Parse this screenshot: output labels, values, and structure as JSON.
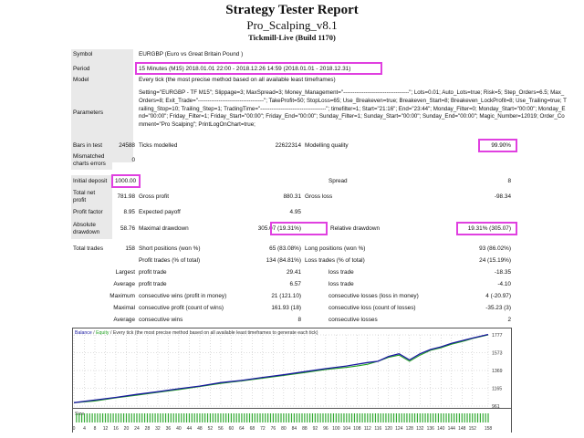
{
  "header": {
    "title": "Strategy Tester Report",
    "subtitle": "Pro_Scalping_v8.1",
    "server": "Tickmill-Live (Build 1170)"
  },
  "info": {
    "symbol_label": "Symbol",
    "symbol_value": "EURGBP (Euro vs Great Britain Pound )",
    "period_label": "Period",
    "period_value": "15 Minutes (M15) 2018.01.01 22:00 - 2018.12.26 14:59 (2018.01.01 - 2018.12.31)",
    "model_label": "Model",
    "model_value": "Every tick (the most precise method based on all available least timeframes)",
    "parameters_label": "Parameters",
    "parameters_value": "Setting=\"EURGBP - TF M15\"; Slippage=3; MaxSpread=3; Money_Management=\"-----------------------------------\"; Lots=0.01; Auto_Lots=true; Risk=5; Step_Orders=6.5; Max_Orders=8; Exit_Trade=\"-----------------------------------\"; TakeProfit=50; StopLoss=65; Use_Breakeven=true; Breakeven_Start=8; Breakeven_LockProfit=8; Use_Trailing=true; Trailing_Stop=10; Trailing_Step=1; TradingTime=\"-----------------------------------\"; timefilter=1; Start=\"21:16\"; End=\"23:44\"; Monday_Filter=0; Monday_Start=\"00:00\"; Monday_End=\"00:00\"; Friday_Filter=1; Friday_Start=\"00:00\"; Friday_End=\"00:00\"; Sunday_Filter=1; Sunday_Start=\"00:00\"; Sunday_End=\"00:00\"; Magic_Number=12019; Order_Comment=\"Pro Scalping\"; PrintLogOnChart=true;"
  },
  "bars": {
    "bars_label": "Bars in test",
    "bars_value": "24588",
    "ticks_label": "Ticks modelled",
    "ticks_value": "22622314",
    "quality_label": "Modelling quality",
    "quality_value": "99.90%",
    "mismatch_label_1": "Mismatched",
    "mismatch_label_2": "charts errors",
    "mismatch_value": "0"
  },
  "deposit": {
    "initial_label": "Initial deposit",
    "initial_value": "1000.00",
    "spread_label": "Spread",
    "spread_value": "8"
  },
  "profit": {
    "net_label_1": "Total net",
    "net_label_2": "profit",
    "net_value": "781.98",
    "gross_profit_label": "Gross profit",
    "gross_profit_value": "880.31",
    "gross_loss_label": "Gross loss",
    "gross_loss_value": "-98.34",
    "factor_label": "Profit factor",
    "factor_value": "8.95",
    "payoff_label": "Expected payoff",
    "payoff_value": "4.95",
    "abs_dd_label_1": "Absolute",
    "abs_dd_label_2": "drawdown",
    "abs_dd_value": "58.76",
    "max_dd_label": "Maximal drawdown",
    "max_dd_value": "305.07 (19.31%)",
    "rel_dd_label": "Relative drawdown",
    "rel_dd_value": "19.31% (305.07)"
  },
  "trades": {
    "total_label": "Total trades",
    "total_value": "158",
    "short_label": "Short positions (won %)",
    "short_value": "65 (83.08%)",
    "long_label": "Long positions (won %)",
    "long_value": "93 (86.02%)",
    "profit_trades_label": "Profit trades (% of total)",
    "profit_trades_value": "134 (84.81%)",
    "loss_trades_label": "Loss trades (% of total)",
    "loss_trades_value": "24 (15.19%)",
    "largest": "Largest",
    "average": "Average",
    "maximum": "Maximum",
    "maximal": "Maximal",
    "largest_profit_label": "profit trade",
    "largest_profit_value": "29.41",
    "largest_loss_label": "loss trade",
    "largest_loss_value": "-18.35",
    "avg_profit_label": "profit trade",
    "avg_profit_value": "6.57",
    "avg_loss_label": "loss trade",
    "avg_loss_value": "-4.10",
    "max_cons_wins_label": "consecutive wins (profit in money)",
    "max_cons_wins_value": "21 (121.10)",
    "max_cons_losses_label": "consecutive losses (loss in money)",
    "max_cons_losses_value": "4 (-20.97)",
    "maximal_cons_profit_label": "consecutive profit (count of wins)",
    "maximal_cons_profit_value": "161.93 (18)",
    "maximal_cons_loss_label": "consecutive loss (count of losses)",
    "maximal_cons_loss_value": "-35.23 (3)",
    "avg_cons_wins_label": "consecutive wins",
    "avg_cons_wins_value": "8",
    "avg_cons_losses_label": "consecutive losses",
    "avg_cons_losses_value": "2"
  },
  "colors": {
    "highlight": "#e040e0",
    "balance": "#1a1aa0",
    "equity": "#22a022",
    "size_bar": "#33aa33",
    "label_shade": "#e9e9e9"
  },
  "chart_data": {
    "type": "line",
    "legend": {
      "balance": "Balance",
      "separator": " / ",
      "equity": "Equity",
      "note": " / Every tick (the most precise method based on all available least timeframes to generate each tick)"
    },
    "size_label": "Size",
    "ylim": [
      961,
      1777
    ],
    "y_ticks": [
      "1777",
      "1573",
      "1369",
      "1165",
      "961"
    ],
    "x_ticks": [
      "0",
      "4",
      "8",
      "12",
      "16",
      "20",
      "24",
      "28",
      "32",
      "36",
      "40",
      "44",
      "48",
      "52",
      "56",
      "60",
      "64",
      "68",
      "72",
      "76",
      "80",
      "84",
      "88",
      "92",
      "96",
      "100",
      "104",
      "108",
      "112",
      "116",
      "120",
      "124",
      "128",
      "132",
      "136",
      "140",
      "144",
      "148",
      "152",
      "158"
    ],
    "x_range": [
      0,
      158
    ],
    "series": [
      {
        "name": "Balance",
        "x": [
          0,
          8,
          16,
          24,
          32,
          40,
          48,
          56,
          64,
          72,
          80,
          88,
          96,
          104,
          112,
          116,
          120,
          124,
          128,
          132,
          136,
          140,
          144,
          148,
          152,
          158
        ],
        "values": [
          1000,
          1030,
          1060,
          1095,
          1125,
          1160,
          1190,
          1230,
          1255,
          1290,
          1320,
          1355,
          1390,
          1420,
          1460,
          1475,
          1530,
          1560,
          1490,
          1560,
          1610,
          1640,
          1680,
          1710,
          1740,
          1782
        ]
      },
      {
        "name": "Equity",
        "x": [
          0,
          8,
          16,
          24,
          32,
          40,
          48,
          56,
          64,
          72,
          80,
          88,
          96,
          104,
          108,
          112,
          116,
          120,
          124,
          128,
          132,
          136,
          140,
          144,
          148,
          152,
          158
        ],
        "values": [
          1000,
          1020,
          1055,
          1085,
          1118,
          1150,
          1185,
          1220,
          1250,
          1280,
          1312,
          1345,
          1380,
          1405,
          1420,
          1440,
          1475,
          1520,
          1545,
          1475,
          1545,
          1600,
          1630,
          1670,
          1700,
          1735,
          1777
        ]
      }
    ]
  }
}
